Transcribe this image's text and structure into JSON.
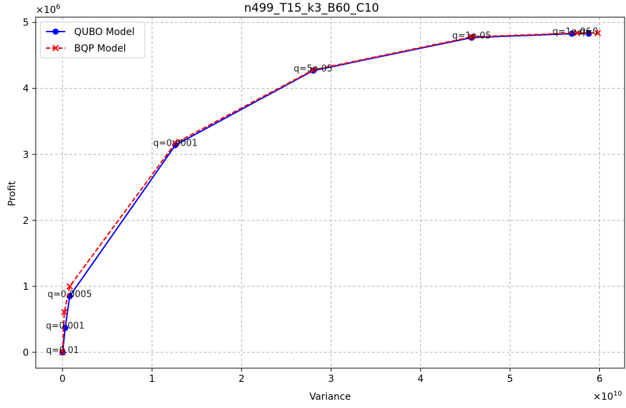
{
  "chart_data": {
    "type": "line",
    "title": "n499_T15_k3_B60_C10",
    "xlabel": "Variance",
    "ylabel": "Profit",
    "x_multiplier": "×10",
    "x_multiplier_exp": "10",
    "y_multiplier": "×10",
    "y_multiplier_exp": "6",
    "xlim": [
      -0.3,
      6.28
    ],
    "ylim": [
      -0.24,
      5.08
    ],
    "x_ticks": [
      0,
      1,
      2,
      3,
      4,
      5,
      6
    ],
    "x_tick_labels": [
      "0",
      "1",
      "2",
      "3",
      "4",
      "5",
      "6"
    ],
    "y_ticks": [
      0,
      1,
      2,
      3,
      4,
      5
    ],
    "y_tick_labels": [
      "0",
      "1",
      "2",
      "3",
      "4",
      "5"
    ],
    "grid": true,
    "legend_position": "top-left",
    "series": [
      {
        "name": "QUBO Model",
        "color": "#0000ff",
        "line_style": "solid",
        "marker": "circle",
        "x": [
          0.0,
          0.03,
          0.08,
          1.26,
          2.8,
          4.57,
          5.69,
          5.88
        ],
        "y": [
          0.0,
          0.37,
          0.85,
          3.14,
          4.27,
          4.77,
          4.83,
          4.83
        ]
      },
      {
        "name": "BQP Model",
        "color": "#ff0000",
        "line_style": "dashed",
        "marker": "x",
        "x": [
          0.0,
          0.02,
          0.08,
          1.26,
          2.8,
          4.57,
          5.75,
          5.98
        ],
        "y": [
          0.0,
          0.61,
          1.0,
          3.17,
          4.28,
          4.78,
          4.84,
          4.84
        ]
      }
    ],
    "annotations": [
      {
        "text": "q=0.01",
        "x": 0.0,
        "y": 0.0
      },
      {
        "text": "q=0.001",
        "x": 0.03,
        "y": 0.37
      },
      {
        "text": "q=0.0005",
        "x": 0.08,
        "y": 0.85
      },
      {
        "text": "q=0.0001",
        "x": 1.26,
        "y": 3.14
      },
      {
        "text": "q=5e-05",
        "x": 2.8,
        "y": 4.27
      },
      {
        "text": "q=1e-05",
        "x": 4.57,
        "y": 4.77
      },
      {
        "text": "q=1e-06",
        "x": 5.69,
        "y": 4.83
      },
      {
        "text": "q=0",
        "x": 5.88,
        "y": 4.83
      }
    ]
  }
}
